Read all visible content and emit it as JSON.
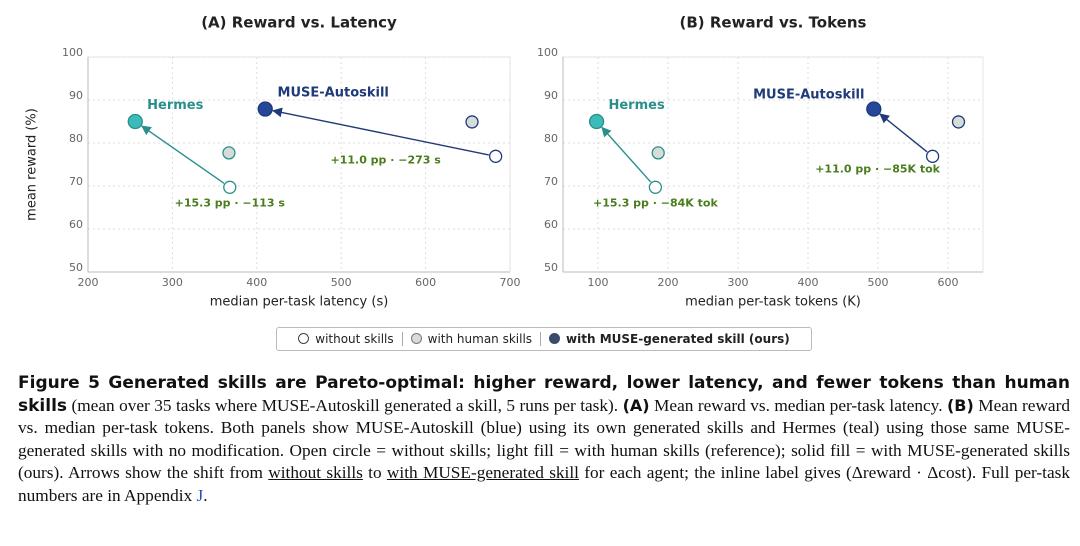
{
  "chart_data": [
    {
      "type": "scatter",
      "title": "(A) Reward vs. Latency",
      "xlabel": "median per-task latency (s)",
      "ylabel": "mean reward (%)",
      "xlim": [
        200,
        700
      ],
      "ylim": [
        50,
        100
      ],
      "xticks": [
        200,
        300,
        400,
        500,
        600,
        700
      ],
      "yticks": [
        50,
        60,
        70,
        80,
        90,
        100
      ],
      "grid": true,
      "series": [
        {
          "name": "Hermes",
          "color": "#2a8f8c",
          "fill": "#3bbcb8",
          "x": [
            368,
            367,
            256
          ],
          "values": [
            69.7,
            77.7,
            85.0
          ],
          "annotation": "+15.3 pp · −113 s"
        },
        {
          "name": "MUSE-Autoskill",
          "color": "#1f3a78",
          "fill": "#24479a",
          "x": [
            683,
            655,
            410
          ],
          "values": [
            76.9,
            84.9,
            87.9
          ],
          "annotation": "+11.0 pp · −273 s"
        }
      ]
    },
    {
      "type": "scatter",
      "title": "(B) Reward vs. Tokens",
      "xlabel": "median per-task tokens (K)",
      "xlim": [
        50,
        650
      ],
      "ylim": [
        50,
        100
      ],
      "xticks": [
        100,
        200,
        300,
        400,
        500,
        600
      ],
      "yticks": [
        50,
        60,
        70,
        80,
        90,
        100
      ],
      "grid": true,
      "series": [
        {
          "name": "Hermes",
          "color": "#2a8f8c",
          "fill": "#3bbcb8",
          "x": [
            182,
            186,
            98
          ],
          "values": [
            69.7,
            77.7,
            85.0
          ],
          "annotation": "+15.3 pp · −84K tok"
        },
        {
          "name": "MUSE-Autoskill",
          "color": "#1f3a78",
          "fill": "#24479a",
          "x": [
            578,
            615,
            494
          ],
          "values": [
            76.9,
            84.9,
            87.9
          ],
          "annotation": "+11.0 pp · −85K tok"
        }
      ]
    }
  ],
  "legend": {
    "items": [
      {
        "label": "without skills",
        "fill": "#ffffff",
        "stroke": "#444444",
        "bold": false
      },
      {
        "label": "with human skills",
        "fill": "#d6dcd8",
        "stroke": "#777777",
        "bold": false
      },
      {
        "label": "with MUSE-generated skill (ours)",
        "fill": "#3a4a6a",
        "stroke": "#3a4a6a",
        "bold": true
      }
    ]
  },
  "caption": {
    "parts": [
      {
        "text": "Figure 5  Generated skills are Pareto-optimal: higher reward, lower latency, and fewer tokens than human skills",
        "style": "cap-title"
      },
      {
        "text": " (mean over 35 tasks where MUSE-Autoskill generated a skill, 5 runs per task). ",
        "style": "plain"
      },
      {
        "text": "(A)",
        "style": "bold"
      },
      {
        "text": " Mean reward vs. median per-task latency. ",
        "style": "plain"
      },
      {
        "text": "(B)",
        "style": "bold"
      },
      {
        "text": " Mean reward vs. median per-task tokens. Both panels show MUSE-Autoskill (blue) using its own generated skills and Hermes (teal) using those same MUSE-generated skills with no modification. Open circle = without skills; light fill = with human skills (reference); solid fill = with MUSE-generated skills (ours). Arrows show the shift from ",
        "style": "plain"
      },
      {
        "text": "without skills",
        "style": "underline"
      },
      {
        "text": " to ",
        "style": "plain"
      },
      {
        "text": "with MUSE-generated skill",
        "style": "underline"
      },
      {
        "text": " for each agent; the inline label gives (Δreward · Δcost). Full per-task numbers are in Appendix ",
        "style": "plain"
      },
      {
        "text": "J",
        "style": "link"
      },
      {
        "text": ".",
        "style": "plain"
      }
    ]
  }
}
